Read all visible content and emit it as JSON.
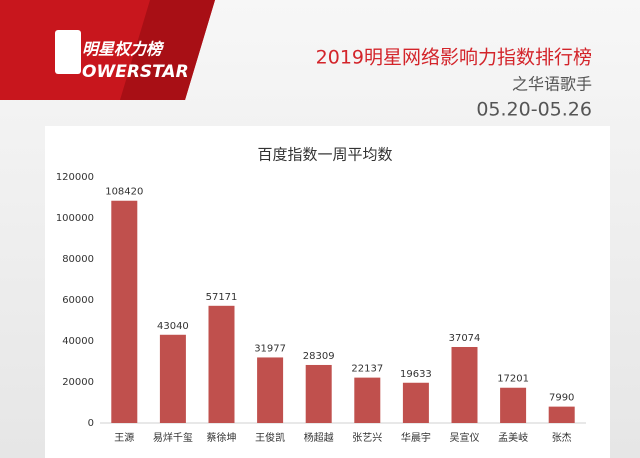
{
  "header": {
    "brand": "明星权力榜",
    "brand_sub": "OWERSTAR",
    "title": "2019明星网络影响力指数排行榜",
    "subtitle": "之华语歌手",
    "date": "05.20-05.26"
  },
  "chart_data": {
    "type": "bar",
    "title": "百度指数一周平均数",
    "categories": [
      "王源",
      "易烊千玺",
      "蔡徐坤",
      "王俊凯",
      "杨超越",
      "张艺兴",
      "华晨宇",
      "吴宣仪",
      "孟美岐",
      "张杰"
    ],
    "values": [
      108420,
      43040,
      57171,
      31977,
      28309,
      22137,
      19633,
      37074,
      17201,
      7990
    ],
    "color": "#c0504d",
    "ylim": [
      0,
      120000
    ],
    "yticks": [
      0,
      20000,
      40000,
      60000,
      80000,
      100000,
      120000
    ],
    "grid": false
  }
}
